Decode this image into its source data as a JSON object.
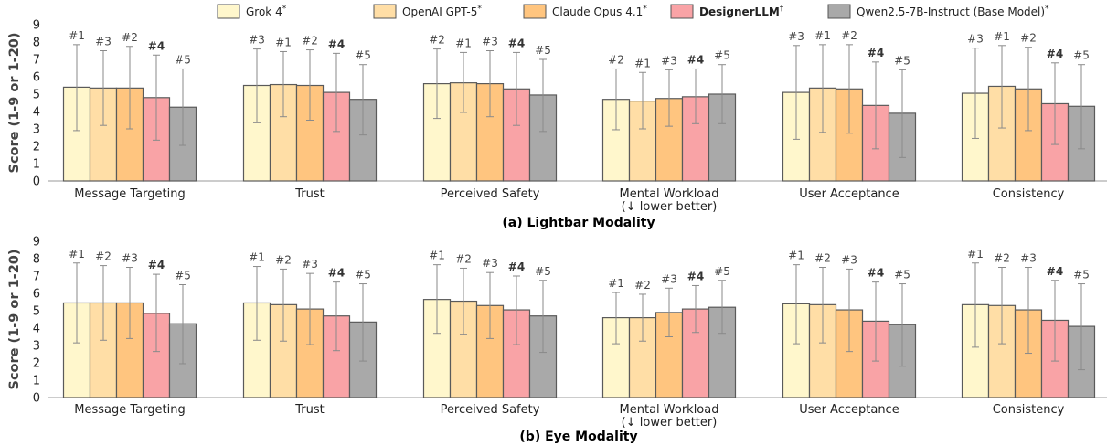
{
  "legend": [
    {
      "name": "Grok 4",
      "sup": "*",
      "color": "#fff7cc",
      "bold": false
    },
    {
      "name": "OpenAI GPT-5",
      "sup": "*",
      "color": "#ffdea6",
      "bold": false
    },
    {
      "name": "Claude Opus 4.1",
      "sup": "*",
      "color": "#ffc57f",
      "bold": false
    },
    {
      "name": "DesignerLLM",
      "sup": "†",
      "color": "#f9a3a6",
      "bold": true
    },
    {
      "name": "Qwen2.5-7B-Instruct (Base Model)",
      "sup": "*",
      "color": "#a9a9a9",
      "bold": false
    }
  ],
  "chart_data": [
    {
      "type": "bar",
      "caption": "(a) Lightbar Modality",
      "ylabel": "Score (1-9 or 1-20)",
      "ylim": [
        0,
        9
      ],
      "yticks": [
        0,
        1,
        2,
        3,
        4,
        5,
        6,
        7,
        8,
        9
      ],
      "categories": [
        "Message Targeting",
        "Trust",
        "Perceived Safety",
        "Mental Workload",
        "User Acceptance",
        "Consistency"
      ],
      "category_sublabels": [
        "",
        "",
        "",
        "(↓ lower better)",
        "",
        ""
      ],
      "series": [
        {
          "name": "Grok 4",
          "values": [
            5.4,
            5.5,
            5.6,
            4.7,
            5.1,
            5.05
          ],
          "err_high": [
            7.85,
            7.6,
            7.6,
            6.45,
            7.8,
            7.65
          ],
          "err_low": [
            2.9,
            3.35,
            3.6,
            2.95,
            2.4,
            2.45
          ],
          "ranks": [
            "#1",
            "#3",
            "#2",
            "#2",
            "#3",
            "#3"
          ]
        },
        {
          "name": "OpenAI GPT-5",
          "values": [
            5.35,
            5.55,
            5.65,
            4.6,
            5.35,
            5.45
          ],
          "err_high": [
            7.5,
            7.45,
            7.4,
            6.25,
            7.85,
            7.8
          ],
          "err_low": [
            3.2,
            3.7,
            3.95,
            3.0,
            2.8,
            3.05
          ],
          "ranks": [
            "#3",
            "#1",
            "#1",
            "#1",
            "#1",
            "#1"
          ]
        },
        {
          "name": "Claude Opus 4.1",
          "values": [
            5.35,
            5.5,
            5.6,
            4.75,
            5.3,
            5.3
          ],
          "err_high": [
            7.75,
            7.55,
            7.5,
            6.4,
            7.85,
            7.7
          ],
          "err_low": [
            3.0,
            3.5,
            3.7,
            3.15,
            2.75,
            2.9
          ],
          "ranks": [
            "#2",
            "#2",
            "#3",
            "#3",
            "#2",
            "#2"
          ]
        },
        {
          "name": "DesignerLLM",
          "values": [
            4.8,
            5.1,
            5.3,
            4.85,
            4.35,
            4.45
          ],
          "err_high": [
            7.25,
            7.35,
            7.4,
            6.45,
            6.85,
            6.8
          ],
          "err_low": [
            2.35,
            2.85,
            3.2,
            3.3,
            1.85,
            2.1
          ],
          "ranks": [
            "#4",
            "#4",
            "#4",
            "#4",
            "#4",
            "#4"
          ]
        },
        {
          "name": "Qwen2.5-7B-Instruct (Base Model)",
          "values": [
            4.25,
            4.7,
            4.95,
            5.0,
            3.9,
            4.3
          ],
          "err_high": [
            6.45,
            6.7,
            7.0,
            6.7,
            6.4,
            6.7
          ],
          "err_low": [
            2.05,
            2.65,
            2.85,
            3.3,
            1.35,
            1.85
          ],
          "ranks": [
            "#5",
            "#5",
            "#5",
            "#5",
            "#5",
            "#5"
          ]
        }
      ]
    },
    {
      "type": "bar",
      "caption": "(b) Eye Modality",
      "ylabel": "Score (1-9 or 1-20)",
      "ylim": [
        0,
        9
      ],
      "yticks": [
        0,
        1,
        2,
        3,
        4,
        5,
        6,
        7,
        8,
        9
      ],
      "categories": [
        "Message Targeting",
        "Trust",
        "Perceived Safety",
        "Mental Workload",
        "User Acceptance",
        "Consistency"
      ],
      "category_sublabels": [
        "",
        "",
        "",
        "(↓ lower better)",
        "",
        ""
      ],
      "series": [
        {
          "name": "Grok 4",
          "values": [
            5.45,
            5.45,
            5.65,
            4.6,
            5.4,
            5.35
          ],
          "err_high": [
            7.75,
            7.55,
            7.65,
            6.05,
            7.65,
            7.75
          ],
          "err_low": [
            3.15,
            3.3,
            3.7,
            3.1,
            3.1,
            2.9
          ],
          "ranks": [
            "#1",
            "#1",
            "#1",
            "#1",
            "#1",
            "#1"
          ]
        },
        {
          "name": "OpenAI GPT-5",
          "values": [
            5.45,
            5.35,
            5.55,
            4.6,
            5.35,
            5.3
          ],
          "err_high": [
            7.6,
            7.4,
            7.45,
            5.95,
            7.5,
            7.5
          ],
          "err_low": [
            3.3,
            3.25,
            3.65,
            3.25,
            3.15,
            3.1
          ],
          "ranks": [
            "#2",
            "#2",
            "#2",
            "#2",
            "#2",
            "#2"
          ]
        },
        {
          "name": "Claude Opus 4.1",
          "values": [
            5.45,
            5.1,
            5.3,
            4.9,
            5.05,
            5.05
          ],
          "err_high": [
            7.5,
            7.15,
            7.2,
            6.3,
            7.4,
            7.5
          ],
          "err_low": [
            3.4,
            3.05,
            3.4,
            3.5,
            2.65,
            2.55
          ],
          "ranks": [
            "#3",
            "#3",
            "#3",
            "#3",
            "#3",
            "#3"
          ]
        },
        {
          "name": "DesignerLLM",
          "values": [
            4.85,
            4.7,
            5.05,
            5.1,
            4.4,
            4.45
          ],
          "err_high": [
            7.1,
            6.65,
            7.0,
            6.45,
            6.65,
            6.75
          ],
          "err_low": [
            2.65,
            2.7,
            3.05,
            3.75,
            2.1,
            2.1
          ],
          "ranks": [
            "#4",
            "#4",
            "#4",
            "#4",
            "#4",
            "#4"
          ]
        },
        {
          "name": "Qwen2.5-7B-Instruct (Base Model)",
          "values": [
            4.25,
            4.35,
            4.7,
            5.2,
            4.2,
            4.1
          ],
          "err_high": [
            6.5,
            6.55,
            6.75,
            6.75,
            6.55,
            6.55
          ],
          "err_low": [
            1.95,
            2.1,
            2.6,
            3.7,
            1.8,
            1.6
          ],
          "ranks": [
            "#5",
            "#5",
            "#5",
            "#5",
            "#5",
            "#5"
          ]
        }
      ]
    }
  ]
}
